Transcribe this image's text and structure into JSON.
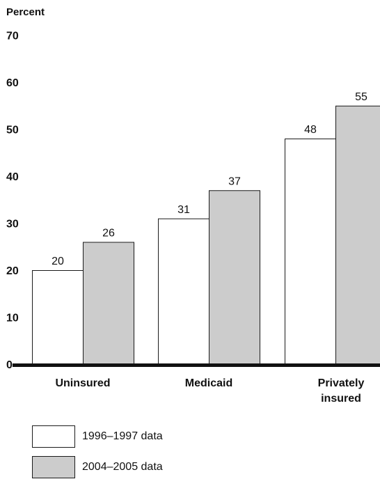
{
  "chart_data": {
    "type": "bar",
    "ylabel": "Percent",
    "ylim": [
      0,
      70
    ],
    "yticks": [
      "0",
      "10",
      "20",
      "30",
      "40",
      "50",
      "60",
      "70"
    ],
    "categories": [
      "Uninsured",
      "Medicaid",
      "Privately insured"
    ],
    "series": [
      {
        "name": "1996–1997 data",
        "values": [
          20,
          31,
          48
        ],
        "color": "#ffffff"
      },
      {
        "name": "2004–2005 data",
        "values": [
          26,
          37,
          55
        ],
        "color": "#cccccc"
      }
    ],
    "bar_outline_color": "#1a1a1a",
    "baseline_color": "#111111",
    "legend_position": "bottom-left"
  }
}
